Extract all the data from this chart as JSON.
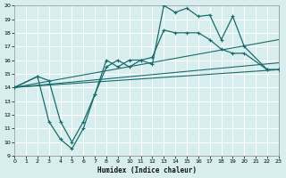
{
  "xlabel": "Humidex (Indice chaleur)",
  "xlim": [
    0,
    23
  ],
  "ylim": [
    9,
    20
  ],
  "yticks": [
    9,
    10,
    11,
    12,
    13,
    14,
    15,
    16,
    17,
    18,
    19,
    20
  ],
  "xticks": [
    0,
    1,
    2,
    3,
    4,
    5,
    6,
    7,
    8,
    9,
    10,
    11,
    12,
    13,
    14,
    15,
    16,
    17,
    18,
    19,
    20,
    21,
    22,
    23
  ],
  "bg_color": "#d8eeee",
  "grid_color": "#b8d8d8",
  "line_color": "#1a6b6b",
  "line1_x": [
    0,
    2,
    3,
    4,
    5,
    6,
    7,
    8,
    9,
    10,
    11,
    12,
    13,
    14,
    15,
    16,
    17,
    18,
    19,
    20,
    22,
    23
  ],
  "line1_y": [
    14.0,
    14.8,
    14.5,
    11.5,
    10.0,
    11.5,
    13.5,
    16.0,
    15.5,
    16.0,
    16.0,
    16.2,
    18.2,
    18.0,
    18.0,
    18.0,
    17.5,
    16.8,
    16.5,
    16.5,
    15.3,
    15.3
  ],
  "line2_x": [
    0,
    2,
    3,
    4,
    5,
    6,
    7,
    8,
    9,
    10,
    11,
    12,
    13,
    14,
    15,
    16,
    17,
    18,
    19,
    20,
    22,
    23
  ],
  "line2_y": [
    14.0,
    14.8,
    11.5,
    10.2,
    9.5,
    11.0,
    13.5,
    15.5,
    16.0,
    15.5,
    16.0,
    15.7,
    20.0,
    19.5,
    19.8,
    19.2,
    19.3,
    17.5,
    19.2,
    17.0,
    15.3,
    15.3
  ],
  "trend1_x": [
    0,
    23
  ],
  "trend1_y": [
    14.0,
    15.3
  ],
  "trend2_x": [
    0,
    23
  ],
  "trend2_y": [
    14.0,
    15.8
  ],
  "trend3_x": [
    0,
    23
  ],
  "trend3_y": [
    14.0,
    17.5
  ]
}
